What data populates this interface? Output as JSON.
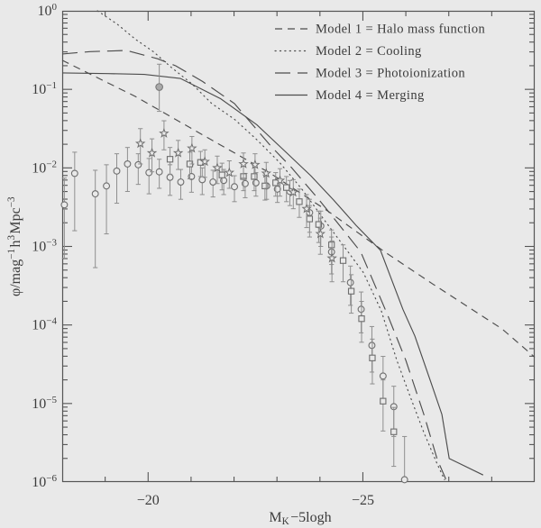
{
  "figure": {
    "background": "#e9e9e9",
    "line_color": "#4d4d4d",
    "axis_color": "#555555",
    "symbol_color": "#6e6e6e",
    "errorbar_color": "#8f8f8f",
    "text_color": "#3c3c3c"
  },
  "chart_data": {
    "type": "line",
    "title": "",
    "xlabel": "M_K − 5 log h",
    "ylabel": "phi / mag^-1 h^3 Mpc^-3",
    "xlabel_segments": [
      {
        "t": "M"
      },
      {
        "sub": "K"
      },
      {
        "t": "−5logh"
      }
    ],
    "ylabel_segments": [
      {
        "t": "φ/mag"
      },
      {
        "sup": "−1"
      },
      {
        "t": "h"
      },
      {
        "sup": "3"
      },
      {
        "t": "Mpc"
      },
      {
        "sup": "−3"
      }
    ],
    "x_axis": {
      "min": -18,
      "max": -29,
      "major_ticks": [
        -20,
        -25
      ],
      "major_tick_labels": [
        "−20",
        "−25"
      ],
      "minor_tick_step": 1
    },
    "y_axis": {
      "scale": "log",
      "max_exp": 0,
      "min_exp": -6,
      "tick_exponents": [
        0,
        -1,
        -2,
        -3,
        -4,
        -5,
        -6
      ]
    },
    "legend_position": "top-right-inside",
    "grid": false,
    "series": [
      {
        "name": "Model 1 = Halo mass function",
        "style": "dashed",
        "points": [
          [
            -18.0,
            -0.63
          ],
          [
            -19.7,
            -1.09
          ],
          [
            -21.27,
            -1.58
          ],
          [
            -22.85,
            -2.07
          ],
          [
            -24.21,
            -2.56
          ],
          [
            -25.51,
            -3.07
          ],
          [
            -26.63,
            -3.48
          ],
          [
            -28.24,
            -4.05
          ],
          [
            -29.0,
            -4.41
          ]
        ]
      },
      {
        "name": "Model 2 = Cooling",
        "style": "dotted",
        "points": [
          [
            -18.82,
            0.0
          ],
          [
            -19.28,
            -0.17
          ],
          [
            -19.7,
            -0.36
          ],
          [
            -20.12,
            -0.52
          ],
          [
            -20.54,
            -0.72
          ],
          [
            -21.02,
            -0.93
          ],
          [
            -21.48,
            -1.18
          ],
          [
            -22.01,
            -1.38
          ],
          [
            -22.53,
            -1.64
          ],
          [
            -23.06,
            -1.93
          ],
          [
            -23.58,
            -2.27
          ],
          [
            -24.11,
            -2.67
          ],
          [
            -24.63,
            -3.05
          ],
          [
            -25.01,
            -3.33
          ],
          [
            -25.43,
            -3.82
          ],
          [
            -25.79,
            -4.45
          ],
          [
            -26.1,
            -4.91
          ],
          [
            -26.42,
            -5.37
          ],
          [
            -26.73,
            -5.77
          ],
          [
            -26.9,
            -5.97
          ]
        ]
      },
      {
        "name": "Model 3 = Photoionization",
        "style": "longdash",
        "points": [
          [
            -18.0,
            -0.55
          ],
          [
            -18.65,
            -0.52
          ],
          [
            -19.49,
            -0.505
          ],
          [
            -20.22,
            -0.61
          ],
          [
            -20.64,
            -0.7
          ],
          [
            -21.27,
            -0.9
          ],
          [
            -22.01,
            -1.18
          ],
          [
            -22.87,
            -1.73
          ],
          [
            -23.33,
            -1.99
          ],
          [
            -24.0,
            -2.42
          ],
          [
            -24.63,
            -2.85
          ],
          [
            -24.95,
            -3.07
          ],
          [
            -25.58,
            -3.88
          ],
          [
            -26.0,
            -4.45
          ],
          [
            -26.42,
            -5.14
          ],
          [
            -26.73,
            -5.71
          ],
          [
            -26.96,
            -6.0
          ]
        ]
      },
      {
        "name": "Model 4 = Merging",
        "style": "solid",
        "points": [
          [
            -18.0,
            -0.79
          ],
          [
            -19.07,
            -0.8
          ],
          [
            -19.91,
            -0.81
          ],
          [
            -20.75,
            -0.86
          ],
          [
            -21.69,
            -1.12
          ],
          [
            -22.53,
            -1.45
          ],
          [
            -23.19,
            -1.79
          ],
          [
            -23.79,
            -2.1
          ],
          [
            -24.32,
            -2.41
          ],
          [
            -24.84,
            -2.73
          ],
          [
            -25.41,
            -3.05
          ],
          [
            -25.93,
            -3.8
          ],
          [
            -26.21,
            -4.14
          ],
          [
            -26.59,
            -4.74
          ],
          [
            -26.84,
            -5.14
          ],
          [
            -27.01,
            -5.7
          ],
          [
            -27.8,
            -5.91
          ]
        ]
      }
    ],
    "datasets": [
      {
        "symbol": "circle",
        "name": "observed-circles",
        "points": [
          [
            -18.05,
            -2.47,
            -2.13,
            -3.15
          ],
          [
            -18.29,
            -2.07,
            -1.8,
            -2.8
          ],
          [
            -18.77,
            -2.33,
            -2.03,
            -3.27
          ],
          [
            -19.03,
            -2.23,
            -1.96,
            -2.84
          ],
          [
            -19.27,
            -2.04,
            -1.82,
            -2.45
          ],
          [
            -19.52,
            -1.95,
            -1.74,
            -2.3
          ],
          [
            -19.77,
            -1.96,
            -1.82,
            -2.21
          ],
          [
            -20.02,
            -2.06,
            -1.88,
            -2.33
          ],
          [
            -20.26,
            -2.05,
            -1.89,
            -2.26
          ],
          [
            -20.51,
            -2.12,
            -1.96,
            -2.35
          ],
          [
            -20.76,
            -2.18,
            -2.02,
            -2.4
          ],
          [
            -21.01,
            -2.11,
            -1.96,
            -2.31
          ],
          [
            -21.26,
            -2.15,
            -2.0,
            -2.34
          ],
          [
            -21.51,
            -2.18,
            -2.03,
            -2.37
          ],
          [
            -21.76,
            -2.16,
            -2.02,
            -2.34
          ],
          [
            -22.01,
            -2.24,
            -2.1,
            -2.43
          ],
          [
            -22.26,
            -2.2,
            -2.07,
            -2.38
          ],
          [
            -22.51,
            -2.19,
            -2.06,
            -2.36
          ],
          [
            -22.76,
            -2.23,
            -2.1,
            -2.4
          ],
          [
            -23.01,
            -2.27,
            -2.14,
            -2.44
          ],
          [
            -23.3,
            -2.3,
            -2.16,
            -2.48
          ],
          [
            -23.76,
            -2.57,
            -2.4,
            -2.82
          ],
          [
            -24.02,
            -2.74,
            -2.55,
            -3.0
          ],
          [
            -24.27,
            -3.07,
            -2.88,
            -3.35
          ],
          [
            -24.71,
            -3.46,
            -3.25,
            -3.75
          ],
          [
            -24.96,
            -3.8,
            -3.58,
            -4.1
          ],
          [
            -25.21,
            -4.26,
            -4.02,
            -4.6
          ],
          [
            -25.47,
            -4.65,
            -4.4,
            -5.0
          ],
          [
            -25.72,
            -5.04,
            -4.78,
            -5.42
          ],
          [
            -25.97,
            -5.97,
            -5.42,
            -5.97
          ]
        ]
      },
      {
        "symbol": "circle-filled",
        "name": "observed-circle-outlier",
        "points": [
          [
            -20.26,
            -0.97,
            -0.68,
            -1.28
          ]
        ]
      },
      {
        "symbol": "square",
        "name": "observed-squares",
        "points": [
          [
            -20.51,
            -1.89,
            -1.74,
            -2.08
          ],
          [
            -20.97,
            -1.95,
            -1.8,
            -2.14
          ],
          [
            -21.22,
            -1.93,
            -1.79,
            -2.11
          ],
          [
            -21.72,
            -2.09,
            -1.94,
            -2.28
          ],
          [
            -22.22,
            -2.11,
            -1.97,
            -2.29
          ],
          [
            -22.47,
            -2.11,
            -1.97,
            -2.29
          ],
          [
            -22.72,
            -2.23,
            -2.09,
            -2.41
          ],
          [
            -22.97,
            -2.19,
            -2.06,
            -2.36
          ],
          [
            -23.22,
            -2.25,
            -2.11,
            -2.43
          ],
          [
            -23.52,
            -2.43,
            -2.27,
            -2.63
          ],
          [
            -23.76,
            -2.65,
            -2.48,
            -2.88
          ],
          [
            -23.97,
            -2.72,
            -2.55,
            -2.95
          ],
          [
            -24.27,
            -2.98,
            -2.79,
            -3.23
          ],
          [
            -24.54,
            -3.18,
            -2.98,
            -3.45
          ],
          [
            -24.73,
            -3.57,
            -3.36,
            -3.85
          ],
          [
            -24.97,
            -3.92,
            -3.7,
            -4.22
          ],
          [
            -25.22,
            -4.42,
            -4.18,
            -4.75
          ],
          [
            -25.47,
            -4.97,
            -4.7,
            -5.35
          ],
          [
            -25.72,
            -5.36,
            -5.05,
            -5.8
          ]
        ]
      },
      {
        "symbol": "star",
        "name": "observed-stars",
        "points": [
          [
            -19.82,
            -1.69,
            -1.5,
            -1.95
          ],
          [
            -20.09,
            -1.81,
            -1.63,
            -2.05
          ],
          [
            -20.37,
            -1.56,
            -1.4,
            -1.77
          ],
          [
            -20.7,
            -1.81,
            -1.65,
            -2.02
          ],
          [
            -21.02,
            -1.75,
            -1.6,
            -1.95
          ],
          [
            -21.32,
            -1.92,
            -1.77,
            -2.12
          ],
          [
            -21.61,
            -2.0,
            -1.85,
            -2.2
          ],
          [
            -21.89,
            -2.06,
            -1.91,
            -2.26
          ],
          [
            -22.22,
            -1.95,
            -1.81,
            -2.13
          ],
          [
            -22.49,
            -1.96,
            -1.82,
            -2.14
          ],
          [
            -22.75,
            -2.07,
            -1.93,
            -2.26
          ],
          [
            -23.07,
            -2.16,
            -2.01,
            -2.36
          ],
          [
            -23.38,
            -2.31,
            -2.15,
            -2.52
          ],
          [
            -23.69,
            -2.52,
            -2.34,
            -2.76
          ],
          [
            -24.01,
            -2.84,
            -2.64,
            -3.1
          ],
          [
            -24.28,
            -3.15,
            -2.93,
            -3.45
          ]
        ]
      }
    ]
  }
}
